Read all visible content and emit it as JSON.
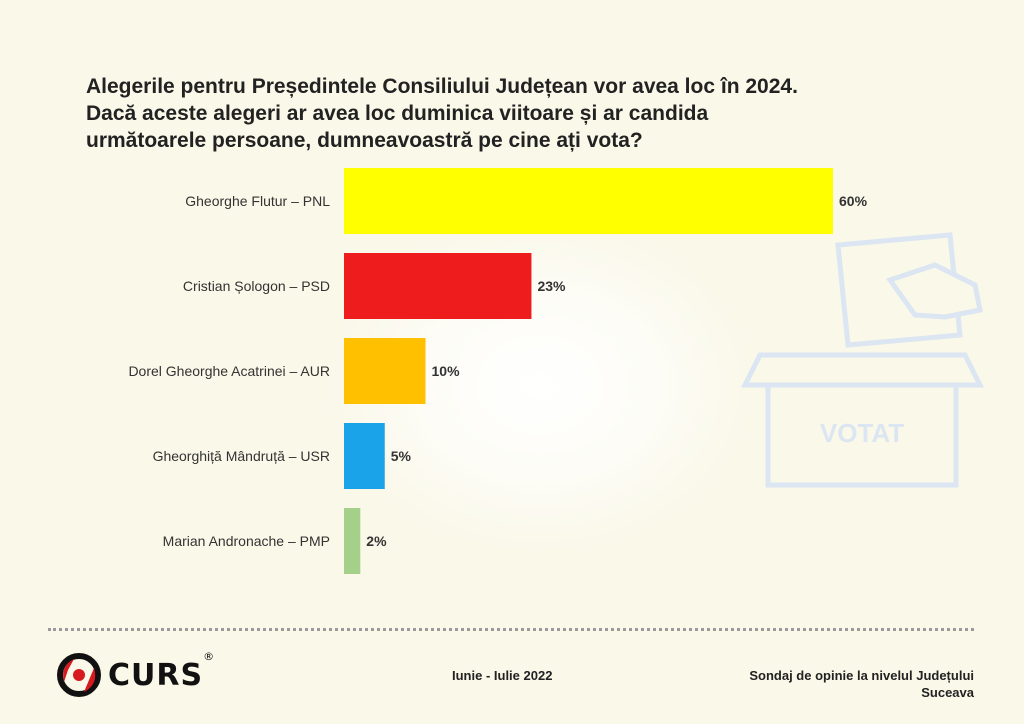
{
  "title_lines": [
    "Alegerile pentru Președintele Consiliului Județean vor avea loc în 2024.",
    "Dacă aceste alegeri ar avea loc duminica viitoare și ar candida",
    "următoarele persoane, dumneavoastră pe cine ați vota?"
  ],
  "chart_data": {
    "type": "bar",
    "orientation": "horizontal",
    "categories": [
      "Gheorghe Flutur – PNL",
      "Cristian Șologon – PSD",
      "Dorel Gheorghe Acatrinei – AUR",
      "Gheorghiță Mândruță – USR",
      "Marian Andronache – PMP"
    ],
    "values": [
      60,
      23,
      10,
      5,
      2
    ],
    "value_labels": [
      "60%",
      "23%",
      "10%",
      "5%",
      "2%"
    ],
    "colors": [
      "#ffff00",
      "#ee1c1c",
      "#ffc000",
      "#1aa3e8",
      "#a4d08a"
    ],
    "xlim": [
      0,
      60
    ],
    "grid": false,
    "legend": "none"
  },
  "watermark": {
    "icon": "ballot-box-icon",
    "text": "VOTAT",
    "color": "#dbe6f2"
  },
  "footer": {
    "brand": "CURS",
    "registered_mark": "®",
    "date": "Iunie - Iulie 2022",
    "source_lines": [
      "Sondaj de opinie la nivelul Județului",
      "Suceava"
    ]
  }
}
